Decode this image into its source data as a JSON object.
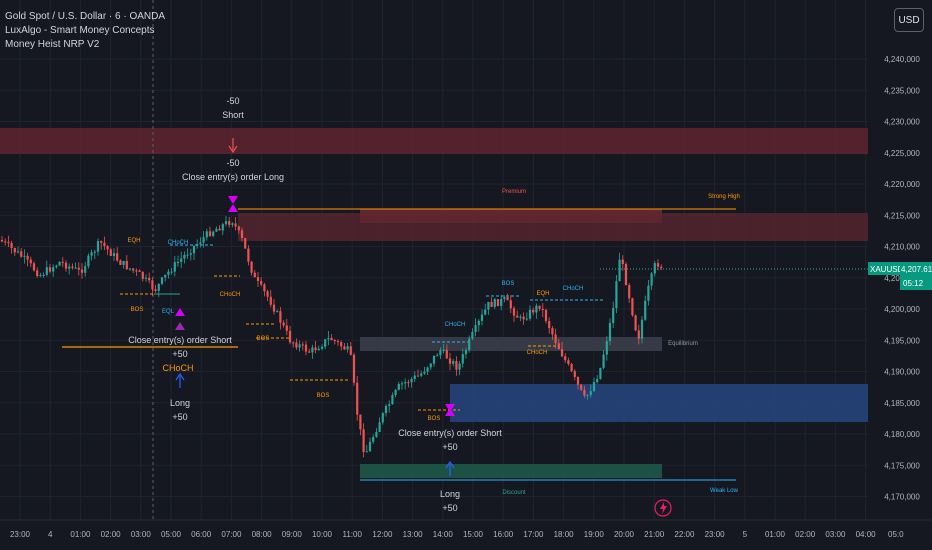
{
  "legend": {
    "symbol_title": "Gold Spot / U.S. Dollar · 6 · OANDA",
    "indicator_1": "LuxAlgo - Smart Money Concepts",
    "indicator_2": "Money Heist NRP V2"
  },
  "currency_button": "USD",
  "price_scale": {
    "ticks": [
      "4,240,000",
      "4,235,000",
      "4,230,000",
      "4,225,000",
      "4,220,000",
      "4,215,000",
      "4,210,000",
      "4,205,000",
      "4,200,000",
      "4,195,000",
      "4,190,000",
      "4,185,000",
      "4,180,000",
      "4,175,000",
      "4,170,000"
    ],
    "last_price_symbol": "XAUUSD",
    "last_price": "4,207.615",
    "countdown": "05:12"
  },
  "time_scale": {
    "ticks": [
      "23:00",
      "4",
      "01:00",
      "02:00",
      "03:00",
      "05:00",
      "06:00",
      "07:00",
      "08:00",
      "09:00",
      "10:00",
      "11:00",
      "12:00",
      "13:00",
      "14:00",
      "15:00",
      "16:00",
      "17:00",
      "18:00",
      "19:00",
      "20:00",
      "21:00",
      "22:00",
      "23:00",
      "5",
      "01:00",
      "02:00",
      "03:00",
      "04:00",
      "05:0"
    ]
  },
  "annotations": {
    "short_top": "-50",
    "short_label": "Short",
    "close_long_amount": "-50",
    "close_long_label": "Close entry(s) order Long",
    "close_short_1": "Close entry(s) order Short",
    "close_short_1_amount": "+50",
    "choch_1": "CHoCH",
    "long_1": "Long",
    "long_1_amount": "+50",
    "close_short_2": "Close entry(s) order Short",
    "close_short_2_amount": "+50",
    "long_2": "Long",
    "long_2_amount": "+50"
  },
  "smc_labels": {
    "premium": "Premium",
    "strong_high": "Strong High",
    "equilibrium": "Equilibrium",
    "discount": "Discount",
    "weak_low": "Weak Low",
    "bos": "BOS",
    "choch": "CHoCH",
    "eqh": "EQH",
    "eql": "EQL"
  },
  "colors": {
    "background": "#151820",
    "up_candle": "#26a69a",
    "down_candle": "#ef5350",
    "premium_zone": "#7a2430",
    "discount_zone": "#1d5c4b",
    "demand_block": "#26457f",
    "strong_high_line": "#ff9800",
    "discount_line": "#29b6f6",
    "label_badge": "#089981"
  }
}
